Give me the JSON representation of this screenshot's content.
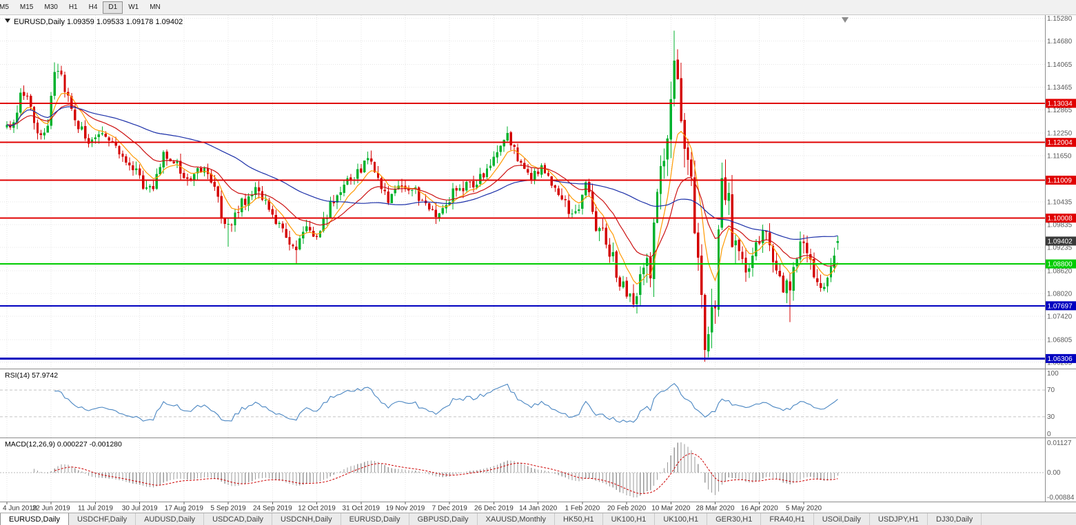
{
  "colors": {
    "up": "#00b22d",
    "down": "#d40000",
    "ma_fast": "#ff9900",
    "ma_mid": "#cc1111",
    "ma_slow": "#1b2fa8",
    "level_red": "#e00000",
    "level_green": "#00cc00",
    "level_blue": "#0000c0",
    "current_badge": "#3a3a3a",
    "rsi_line": "#4a86c2",
    "macd_hist": "#9a9a9a",
    "macd_signal": "#cc0000",
    "grid": "#e4e4e4",
    "panel_border": "#8c8c8c",
    "axis_text": "#5a5a5a"
  },
  "toolbar": {
    "timeframes": [
      "M5",
      "M15",
      "M30",
      "H1",
      "H4",
      "D1",
      "W1",
      "MN"
    ],
    "active": "D1"
  },
  "chart_data": {
    "type": "candlestick",
    "symbol": "EURUSD",
    "timeframe": "Daily",
    "title": "EURUSD,Daily 1.09359 1.09533 1.09178 1.09402",
    "quote": {
      "open": 1.09359,
      "high": 1.09533,
      "low": 1.09178,
      "close": 1.09402
    },
    "current_price": 1.09402,
    "price_range": [
      1.0604,
      1.1536
    ],
    "candle_count": 245,
    "price_path": [
      [
        0,
        1.124
      ],
      [
        2,
        1.1253
      ],
      [
        4,
        1.1335
      ],
      [
        7,
        1.1308
      ],
      [
        9,
        1.1212
      ],
      [
        12,
        1.123
      ],
      [
        14,
        1.1399
      ],
      [
        16,
        1.1365
      ],
      [
        19,
        1.1285
      ],
      [
        23,
        1.1208
      ],
      [
        27,
        1.1225
      ],
      [
        30,
        1.1212
      ],
      [
        34,
        1.1151
      ],
      [
        38,
        1.1118
      ],
      [
        41,
        1.1075
      ],
      [
        43,
        1.109
      ],
      [
        46,
        1.118
      ],
      [
        50,
        1.114
      ],
      [
        54,
        1.1092
      ],
      [
        58,
        1.1145
      ],
      [
        62,
        1.1057
      ],
      [
        64,
        1.0972
      ],
      [
        66,
        1.0985
      ],
      [
        69,
        1.104
      ],
      [
        73,
        1.1073
      ],
      [
        76,
        1.1042
      ],
      [
        79,
        1.0992
      ],
      [
        82,
        1.0942
      ],
      [
        85,
        1.0932
      ],
      [
        88,
        1.0972
      ],
      [
        91,
        1.0958
      ],
      [
        95,
        1.1034
      ],
      [
        99,
        1.1082
      ],
      [
        103,
        1.1126
      ],
      [
        107,
        1.1152
      ],
      [
        110,
        1.1072
      ],
      [
        112,
        1.1052
      ],
      [
        116,
        1.1078
      ],
      [
        120,
        1.1076
      ],
      [
        124,
        1.1012
      ],
      [
        127,
        1.1018
      ],
      [
        131,
        1.1065
      ],
      [
        135,
        1.1082
      ],
      [
        140,
        1.1112
      ],
      [
        144,
        1.1175
      ],
      [
        147,
        1.1212
      ],
      [
        150,
        1.116
      ],
      [
        154,
        1.1113
      ],
      [
        157,
        1.1128
      ],
      [
        161,
        1.1092
      ],
      [
        165,
        1.1022
      ],
      [
        168,
        1.1032
      ],
      [
        170,
        1.1094
      ],
      [
        173,
        1.0982
      ],
      [
        176,
        1.0946
      ],
      [
        180,
        1.0832
      ],
      [
        184,
        1.0786
      ],
      [
        187,
        1.0852
      ],
      [
        189,
        1.0882
      ],
      [
        192,
        1.113
      ],
      [
        194,
        1.1175
      ],
      [
        196,
        1.1446
      ],
      [
        198,
        1.1282
      ],
      [
        200,
        1.114
      ],
      [
        202,
        1.0998
      ],
      [
        204,
        1.0822
      ],
      [
        205,
        1.0696
      ],
      [
        206,
        1.073
      ],
      [
        208,
        1.0802
      ],
      [
        210,
        1.1141
      ],
      [
        212,
        1.1032
      ],
      [
        213,
        1.0964
      ],
      [
        216,
        1.0902
      ],
      [
        218,
        1.0858
      ],
      [
        220,
        1.0922
      ],
      [
        222,
        1.098
      ],
      [
        225,
        1.0872
      ],
      [
        228,
        1.0824
      ],
      [
        230,
        1.0822
      ],
      [
        232,
        1.0882
      ],
      [
        234,
        1.0954
      ],
      [
        236,
        1.0872
      ],
      [
        237,
        1.084
      ],
      [
        239,
        1.0802
      ],
      [
        241,
        1.0842
      ],
      [
        243,
        1.0882
      ],
      [
        244,
        1.094
      ]
    ],
    "extremes": [
      [
        14,
        "h",
        1.1412
      ],
      [
        65,
        "l",
        1.0926
      ],
      [
        85,
        "l",
        1.0879
      ],
      [
        107,
        "h",
        1.1179
      ],
      [
        147,
        "h",
        1.1239
      ],
      [
        184,
        "l",
        1.0778
      ],
      [
        196,
        "h",
        1.1495
      ],
      [
        206,
        "l",
        1.0636
      ],
      [
        210,
        "h",
        1.1147
      ],
      [
        230,
        "l",
        1.0727
      ]
    ],
    "hlines": [
      {
        "price": 1.13034,
        "color": "red",
        "width": 2
      },
      {
        "price": 1.12004,
        "color": "red",
        "width": 2
      },
      {
        "price": 1.11009,
        "color": "red",
        "width": 2
      },
      {
        "price": 1.10008,
        "color": "red",
        "width": 2
      },
      {
        "price": 1.088,
        "color": "green",
        "width": 2
      },
      {
        "price": 1.07697,
        "color": "blue",
        "width": 2
      },
      {
        "price": 1.06306,
        "color": "blue",
        "width": 3
      }
    ],
    "y_axis_labels": [
      "1.15280",
      "1.14680",
      "1.14065",
      "1.13465",
      "1.12865",
      "1.12250",
      "1.11650",
      "1.10435",
      "1.09835",
      "1.09235",
      "1.08620",
      "1.08020",
      "1.07420",
      "1.06805",
      "1.06205"
    ],
    "x_axis_labels": [
      "4 Jun 2019",
      "22 Jun 2019",
      "11 Jul 2019",
      "30 Jul 2019",
      "17 Aug 2019",
      "5 Sep 2019",
      "24 Sep 2019",
      "12 Oct 2019",
      "31 Oct 2019",
      "19 Nov 2019",
      "7 Dec 2019",
      "26 Dec 2019",
      "14 Jan 2020",
      "1 Feb 2020",
      "20 Feb 2020",
      "10 Mar 2020",
      "28 Mar 2020",
      "16 Apr 2020",
      "5 May 2020"
    ],
    "moving_averages": [
      {
        "type": "ema",
        "period": 8,
        "color_key": "ma_fast"
      },
      {
        "type": "ema",
        "period": 21,
        "color_key": "ma_mid"
      },
      {
        "type": "sma",
        "period": 55,
        "color_key": "ma_slow"
      }
    ],
    "indicators": [
      {
        "name": "rsi",
        "label": "RSI(14) 57.9742",
        "period": 14,
        "levels": [
          70,
          30
        ],
        "axis_labels": [
          "100",
          "70",
          "30",
          "0"
        ]
      },
      {
        "name": "macd",
        "label": "MACD(12,26,9) 0.000227 -0.001280",
        "fast": 12,
        "slow": 26,
        "signal": 9,
        "axis_labels": {
          "top": "0.01127",
          "zero": "0.00",
          "bottom": "-0.00884"
        }
      }
    ]
  },
  "tabs": [
    {
      "label": "EURUSD,Daily",
      "active": true
    },
    {
      "label": "USDCHF,Daily"
    },
    {
      "label": "AUDUSD,Daily"
    },
    {
      "label": "USDCAD,Daily"
    },
    {
      "label": "USDCNH,Daily"
    },
    {
      "label": "EURUSD,Daily"
    },
    {
      "label": "GBPUSD,Daily"
    },
    {
      "label": "XAUUSD,Monthly"
    },
    {
      "label": "HK50,H1"
    },
    {
      "label": "UK100,H1"
    },
    {
      "label": "UK100,H1"
    },
    {
      "label": "GER30,H1"
    },
    {
      "label": "FRA40,H1"
    },
    {
      "label": "USOil,Daily"
    },
    {
      "label": "USDJPY,H1"
    },
    {
      "label": "DJ30,Daily"
    }
  ]
}
